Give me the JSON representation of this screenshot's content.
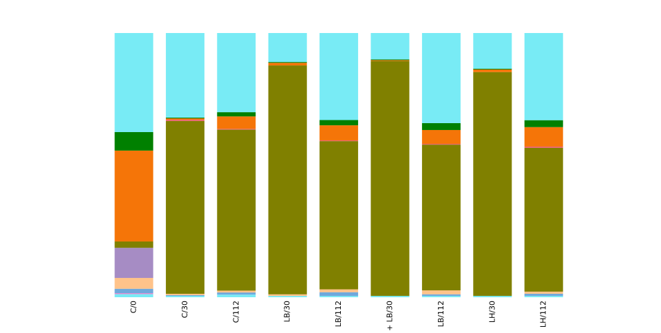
{
  "chart_data": {
    "type": "bar",
    "stacked": true,
    "normalized": true,
    "ylim": [
      0,
      100
    ],
    "grid": false,
    "legend": "none",
    "categories": [
      "C/0",
      "C/30",
      "C/112",
      "LB/30",
      "LB/112",
      "+ LB/30",
      "LB/112",
      "LH/30",
      "LH/112"
    ],
    "series": [
      {
        "color": "#78ebf5",
        "values": [
          1.2,
          0.5,
          1.0,
          0.5,
          0.5,
          0.5,
          0.5,
          0.5,
          0.5
        ]
      },
      {
        "color": "#ff6ec7",
        "values": [
          0.3,
          0.0,
          0.0,
          0.0,
          0.0,
          0.0,
          0.0,
          0.0,
          0.0
        ]
      },
      {
        "color": "#6fa8dc",
        "values": [
          1.7,
          0.3,
          0.8,
          0.0,
          1.4,
          0.0,
          0.6,
          0.0,
          0.8
        ]
      },
      {
        "color": "#ffc38a",
        "values": [
          4.1,
          0.5,
          0.7,
          0.6,
          1.1,
          0.0,
          1.5,
          0.0,
          0.8
        ]
      },
      {
        "color": "#a68cc4",
        "values": [
          11.4,
          0.0,
          0.0,
          0.0,
          0.0,
          0.0,
          0.0,
          0.0,
          0.0
        ]
      },
      {
        "color": "#808000",
        "values": [
          2.4,
          65.4,
          61.0,
          86.9,
          56.2,
          89.0,
          55.0,
          84.8,
          54.1
        ]
      },
      {
        "color": "#e9636d",
        "values": [
          0.0,
          0.5,
          0.3,
          0.0,
          0.3,
          0.0,
          0.3,
          0.0,
          0.5
        ]
      },
      {
        "color": "#f57508",
        "values": [
          34.4,
          0.5,
          4.7,
          1.0,
          5.7,
          0.3,
          5.2,
          1.0,
          7.3
        ]
      },
      {
        "color": "#008000",
        "values": [
          7.0,
          0.3,
          1.6,
          0.3,
          2.0,
          0.3,
          2.6,
          0.3,
          2.6
        ]
      },
      {
        "color": "#78ebf5",
        "values": [
          37.5,
          32.0,
          30.0,
          11.0,
          33.0,
          10.0,
          34.0,
          13.5,
          32.8
        ]
      }
    ]
  }
}
